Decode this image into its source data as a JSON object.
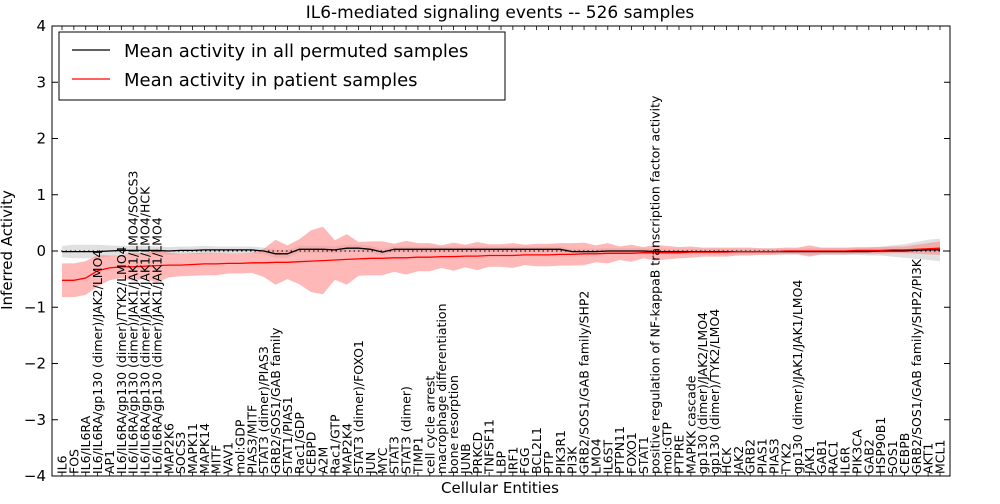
{
  "chart_data": {
    "type": "line",
    "title": "IL6-mediated signaling events -- 526 samples",
    "xlabel": "Cellular Entities",
    "ylabel": "Inferred Activity",
    "ylim": [
      -4,
      4
    ],
    "yticks": [
      "−4",
      "−3",
      "−2",
      "−1",
      "0",
      "1",
      "2",
      "3",
      "4"
    ],
    "grid": false,
    "legend_position": "top-left",
    "colors": {
      "permuted": "#000000",
      "patient": "#ff0000",
      "patient_band": "#ff8888",
      "permuted_band": "#bbbbbb"
    },
    "categories": [
      "IL6",
      "FOS",
      "IL6/IL6RA",
      "IL6/IL6RA/gp130 (dimer)/JAK2/LMO4",
      "AP1",
      "IL6/IL6RA/gp130 (dimer)/TYK2/LMO4",
      "IL6/IL6RA/gp130 (dimer)/JAK1/JAK1/LMO4/SOCS3",
      "IL6/IL6RA/gp130 (dimer)/JAK1/JAK1/LMO4/HCK",
      "IL6/IL6RA/gp130 (dimer)/JAK1/JAK1/LMO4",
      "MAP2K6",
      "SOCS3",
      "MAPK11",
      "MAPK14",
      "MITF",
      "VAV1",
      "mol:GDP",
      "PIAS3/MITF",
      "STAT3 (dimer)/PIAS3",
      "GRB2/SOS1/GAB family",
      "STAT1/PIAS1",
      "Rac1/GDP",
      "CEBPD",
      "A2M",
      "Rac1/GTP",
      "MAP2K4",
      "STAT3 (dimer)/FOXO1",
      "JUN",
      "MYC",
      "STAT3",
      "STAT3 (dimer)",
      "TIMP1",
      "cell cycle arrest",
      "macrophage differentiation",
      "bone resorption",
      "JUNB",
      "PRKCD",
      "TNFSF11",
      "LBP",
      "IRF1",
      "FGG",
      "BCL2L1",
      "PTP",
      "PIK3R1",
      "PI3K",
      "GRB2/SOS1/GAB family/SHP2",
      "LMO4",
      "IL6ST",
      "PTPN11",
      "FOXO1",
      "STAT1",
      "positive regulation of NF-kappaB transcription factor activity",
      "mol:GTP",
      "PTPRE",
      "MAPKK cascade",
      "gp130 (dimer)/JAK2/LMO4",
      "gp130 (dimer)/TYK2/LMO4",
      "HCK",
      "JAK2",
      "GRB2",
      "PIAS1",
      "PIAS3",
      "TYK2",
      "gp130 (dimer)/JAK1/JAK1/LMO4",
      "JAK1",
      "GAB1",
      "RAC1",
      "IL6R",
      "PIK3CA",
      "GAB2",
      "HSP90B1",
      "SOS1",
      "CEBPB",
      "GRB2/SOS1/GAB family/SHP2/PI3K",
      "AKT1",
      "MCL1"
    ],
    "series": [
      {
        "name": "Mean activity in all permuted samples",
        "values": [
          -0.01,
          -0.01,
          -0.01,
          -0.01,
          0.0,
          0.01,
          0.01,
          0.01,
          0.01,
          0.0,
          0.01,
          0.01,
          0.02,
          0.02,
          0.02,
          0.02,
          0.02,
          0.0,
          -0.05,
          -0.05,
          0.03,
          0.03,
          0.03,
          0.02,
          0.05,
          0.05,
          0.03,
          -0.02,
          0.03,
          0.03,
          0.03,
          0.03,
          0.03,
          0.03,
          0.03,
          0.03,
          0.03,
          0.03,
          0.03,
          0.03,
          0.03,
          0.03,
          0.03,
          -0.01,
          -0.01,
          -0.01,
          0.0,
          0.0,
          0.0,
          0.0,
          -0.01,
          -0.01,
          -0.01,
          -0.01,
          -0.01,
          -0.01,
          -0.01,
          -0.01,
          -0.01,
          -0.01,
          -0.01,
          -0.01,
          -0.01,
          -0.01,
          -0.01,
          -0.01,
          -0.01,
          -0.01,
          -0.01,
          0.0,
          0.0,
          0.0,
          0.01,
          0.02,
          0.02
        ],
        "band": [
          0.1,
          0.12,
          0.12,
          0.12,
          0.1,
          0.08,
          0.08,
          0.08,
          0.07,
          0.07,
          0.07,
          0.07,
          0.07,
          0.06,
          0.06,
          0.06,
          0.06,
          0.06,
          0.07,
          0.07,
          0.06,
          0.06,
          0.06,
          0.06,
          0.06,
          0.06,
          0.06,
          0.06,
          0.05,
          0.05,
          0.05,
          0.05,
          0.05,
          0.05,
          0.05,
          0.05,
          0.05,
          0.05,
          0.05,
          0.05,
          0.05,
          0.05,
          0.05,
          0.05,
          0.05,
          0.05,
          0.05,
          0.05,
          0.05,
          0.05,
          0.05,
          0.05,
          0.05,
          0.05,
          0.05,
          0.05,
          0.05,
          0.05,
          0.05,
          0.05,
          0.05,
          0.05,
          0.05,
          0.06,
          0.06,
          0.06,
          0.06,
          0.06,
          0.07,
          0.08,
          0.1,
          0.12,
          0.15,
          0.18,
          0.2
        ]
      },
      {
        "name": "Mean activity in patient samples",
        "values": [
          -0.52,
          -0.52,
          -0.48,
          -0.35,
          -0.3,
          -0.28,
          -0.28,
          -0.27,
          -0.26,
          -0.25,
          -0.25,
          -0.24,
          -0.23,
          -0.23,
          -0.22,
          -0.22,
          -0.21,
          -0.21,
          -0.2,
          -0.2,
          -0.19,
          -0.18,
          -0.17,
          -0.16,
          -0.15,
          -0.14,
          -0.13,
          -0.13,
          -0.12,
          -0.12,
          -0.11,
          -0.11,
          -0.1,
          -0.1,
          -0.09,
          -0.09,
          -0.08,
          -0.08,
          -0.08,
          -0.07,
          -0.07,
          -0.07,
          -0.06,
          -0.06,
          -0.05,
          -0.05,
          -0.04,
          -0.04,
          -0.04,
          -0.03,
          -0.03,
          -0.03,
          -0.03,
          -0.02,
          -0.02,
          -0.02,
          -0.02,
          -0.01,
          -0.01,
          -0.01,
          -0.01,
          0.0,
          0.0,
          0.0,
          0.0,
          0.0,
          0.0,
          0.01,
          0.01,
          0.01,
          0.02,
          0.02,
          0.03,
          0.04,
          0.05
        ],
        "band": [
          0.3,
          0.3,
          0.3,
          0.28,
          0.22,
          0.2,
          0.25,
          0.22,
          0.3,
          0.22,
          0.2,
          0.2,
          0.2,
          0.2,
          0.18,
          0.18,
          0.18,
          0.25,
          0.4,
          0.3,
          0.4,
          0.55,
          0.6,
          0.35,
          0.45,
          0.3,
          0.3,
          0.3,
          0.25,
          0.3,
          0.25,
          0.25,
          0.2,
          0.25,
          0.2,
          0.25,
          0.2,
          0.2,
          0.22,
          0.18,
          0.2,
          0.2,
          0.2,
          0.2,
          0.2,
          0.15,
          0.18,
          0.12,
          0.15,
          0.1,
          0.14,
          0.12,
          0.1,
          0.1,
          0.08,
          0.08,
          0.08,
          0.07,
          0.07,
          0.06,
          0.06,
          0.06,
          0.06,
          0.1,
          0.06,
          0.06,
          0.06,
          0.06,
          0.06,
          0.06,
          0.06,
          0.06,
          0.08,
          0.1,
          0.12
        ]
      }
    ],
    "reference_line": {
      "y": 0,
      "style": "dotted"
    }
  }
}
